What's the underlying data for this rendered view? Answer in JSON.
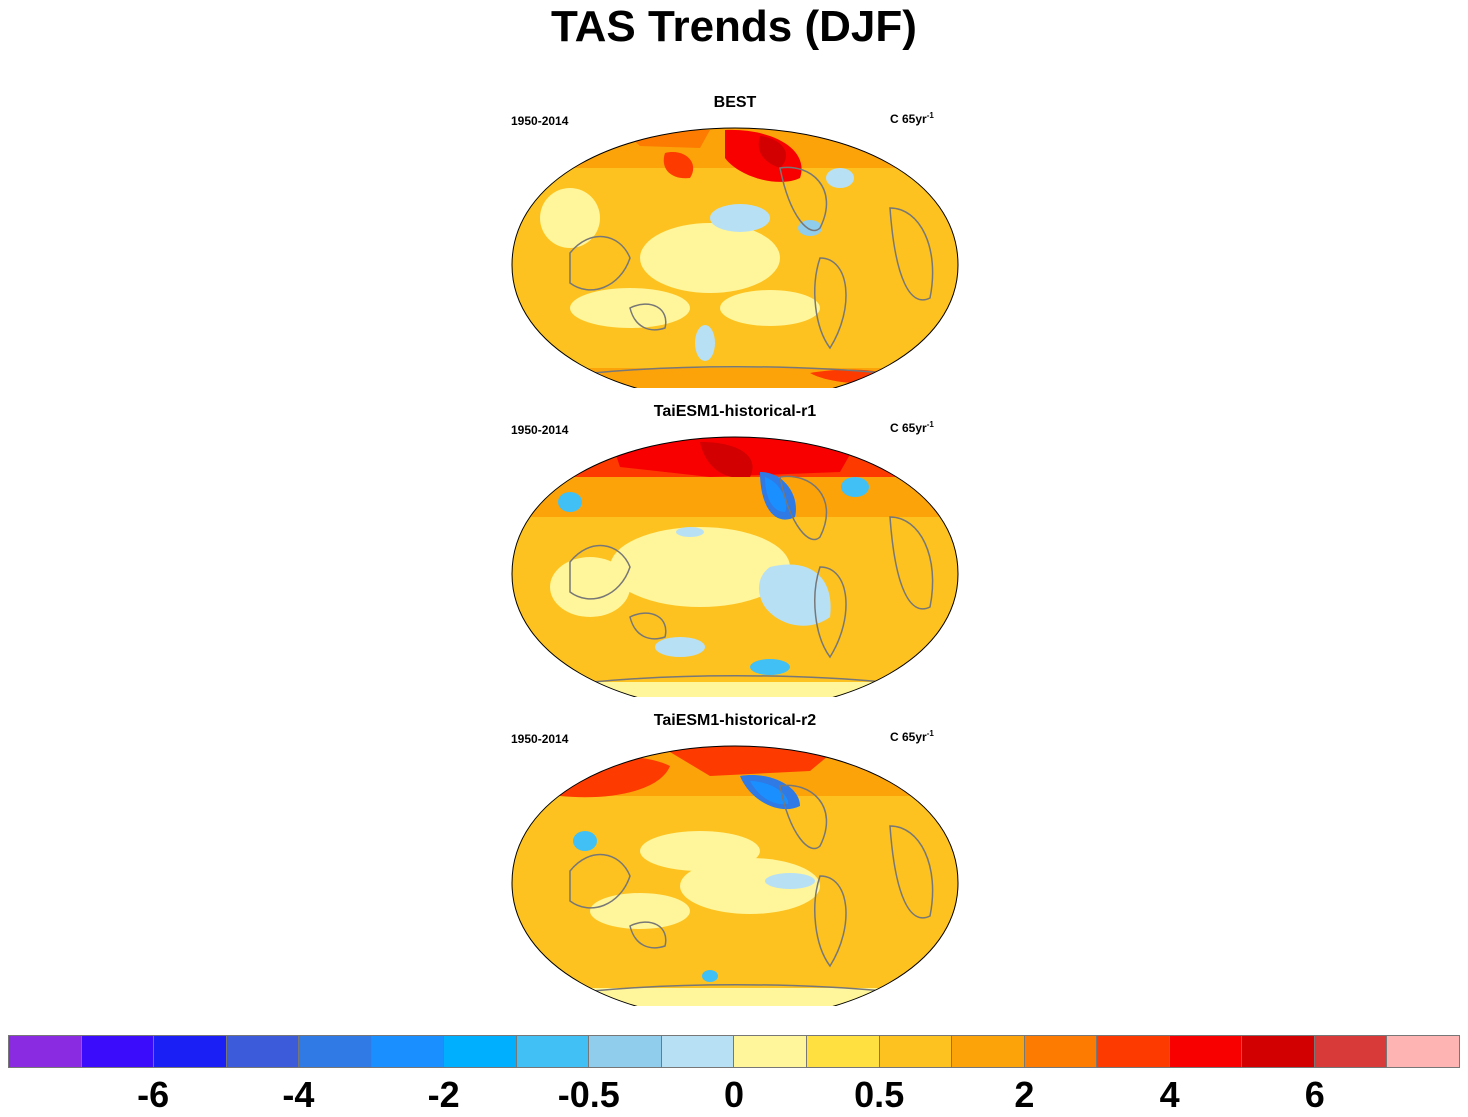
{
  "title": "TAS Trends (DJF)",
  "panels": [
    {
      "title": "BEST",
      "period": "1950-2014",
      "units_base": "C 65yr",
      "units_exp": "-1"
    },
    {
      "title": "TaiESM1-historical-r1",
      "period": "1950-2014",
      "units_base": "C 65yr",
      "units_exp": "-1"
    },
    {
      "title": "TaiESM1-historical-r2",
      "period": "1950-2014",
      "units_base": "C 65yr",
      "units_exp": "-1"
    }
  ],
  "colorbar": {
    "colors": [
      "#8a2be2",
      "#3b0cfc",
      "#1a1ff5",
      "#3b5bdb",
      "#2f7ae5",
      "#1a8fff",
      "#00b0ff",
      "#40c0f5",
      "#90cdec",
      "#b8e0f5",
      "#fff59a",
      "#ffe040",
      "#fdc21f",
      "#fda30a",
      "#fc7b00",
      "#fd3a00",
      "#f80000",
      "#d20000",
      "#d83a3a",
      "#ffb4b4"
    ],
    "labels": [
      "-6",
      "-4",
      "-2",
      "-0.5",
      "0",
      "0.5",
      "2",
      "4",
      "6"
    ],
    "label_box_index": [
      2,
      4,
      6,
      8,
      10,
      12,
      14,
      16,
      18
    ]
  }
}
